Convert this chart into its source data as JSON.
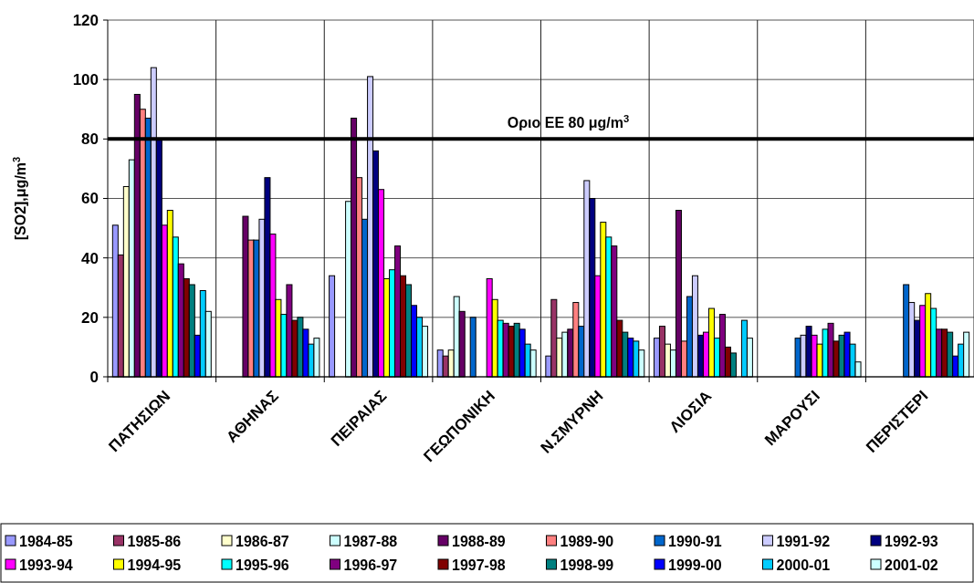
{
  "chart_data": {
    "type": "bar",
    "ylabel": "[SO2],μg/m$^{3}$",
    "categories": [
      "ΠΑΤΗΣΙΩΝ",
      "ΑΘΗΝΑΣ",
      "ΠΕΙΡΑΙΑΣ",
      "ΓΕΩΠΟΝΙΚΗ",
      "Ν.ΣΜΥΡΝΗ",
      "ΛΙΟΣΙΑ",
      "ΜΑΡΟΥΣΙ",
      "ΠΕΡΙΣΤΕΡΙ"
    ],
    "ylim": [
      0,
      120
    ],
    "yticks": [
      0,
      20,
      40,
      60,
      80,
      100,
      120
    ],
    "grid": true,
    "legend": "bottom",
    "ref_lines": [
      {
        "axis": "y",
        "value": 80,
        "label": "Οριο ΕΕ 80 μg/m$^{3}$",
        "color": "#000000"
      }
    ],
    "series": [
      {
        "name": "1984-85",
        "color": "#9999ff",
        "values": [
          51,
          null,
          34,
          9,
          7,
          13,
          null,
          null
        ]
      },
      {
        "name": "1985-86",
        "color": "#993366",
        "values": [
          41,
          null,
          null,
          7,
          26,
          17,
          null,
          null
        ]
      },
      {
        "name": "1986-87",
        "color": "#ffffcc",
        "values": [
          64,
          null,
          null,
          9,
          13,
          11,
          null,
          null
        ]
      },
      {
        "name": "1987-88",
        "color": "#ccffff",
        "values": [
          73,
          null,
          59,
          27,
          15,
          9,
          null,
          null
        ]
      },
      {
        "name": "1988-89",
        "color": "#660066",
        "values": [
          95,
          54,
          87,
          22,
          16,
          56,
          null,
          null
        ]
      },
      {
        "name": "1989-90",
        "color": "#ff8080",
        "values": [
          90,
          46,
          67,
          null,
          25,
          12,
          null,
          null
        ]
      },
      {
        "name": "1990-91",
        "color": "#0066cc",
        "values": [
          87,
          46,
          53,
          20,
          17,
          27,
          13,
          31
        ]
      },
      {
        "name": "1991-92",
        "color": "#ccccff",
        "values": [
          104,
          53,
          101,
          null,
          66,
          34,
          14,
          25
        ]
      },
      {
        "name": "1992-93",
        "color": "#000080",
        "values": [
          80,
          67,
          76,
          null,
          60,
          14,
          17,
          19
        ]
      },
      {
        "name": "1993-94",
        "color": "#ff00ff",
        "values": [
          51,
          48,
          63,
          33,
          34,
          15,
          14,
          24
        ]
      },
      {
        "name": "1994-95",
        "color": "#ffff00",
        "values": [
          56,
          26,
          33,
          26,
          52,
          23,
          11,
          28
        ]
      },
      {
        "name": "1995-96",
        "color": "#00ffff",
        "values": [
          47,
          21,
          36,
          19,
          47,
          13,
          16,
          23
        ]
      },
      {
        "name": "1996-97",
        "color": "#800080",
        "values": [
          38,
          31,
          44,
          18,
          44,
          21,
          18,
          16
        ]
      },
      {
        "name": "1997-98",
        "color": "#800000",
        "values": [
          33,
          19,
          34,
          17,
          19,
          10,
          12,
          16
        ]
      },
      {
        "name": "1998-99",
        "color": "#008080",
        "values": [
          31,
          20,
          31,
          18,
          15,
          8,
          14,
          15
        ]
      },
      {
        "name": "1999-00",
        "color": "#0000ff",
        "values": [
          14,
          16,
          24,
          16,
          13,
          null,
          15,
          7
        ]
      },
      {
        "name": "2000-01",
        "color": "#00ccff",
        "values": [
          29,
          11,
          20,
          11,
          12,
          19,
          11,
          11
        ]
      },
      {
        "name": "2001-02",
        "color": "#ccffff",
        "values": [
          22,
          13,
          17,
          9,
          9,
          13,
          5,
          15
        ]
      }
    ]
  }
}
